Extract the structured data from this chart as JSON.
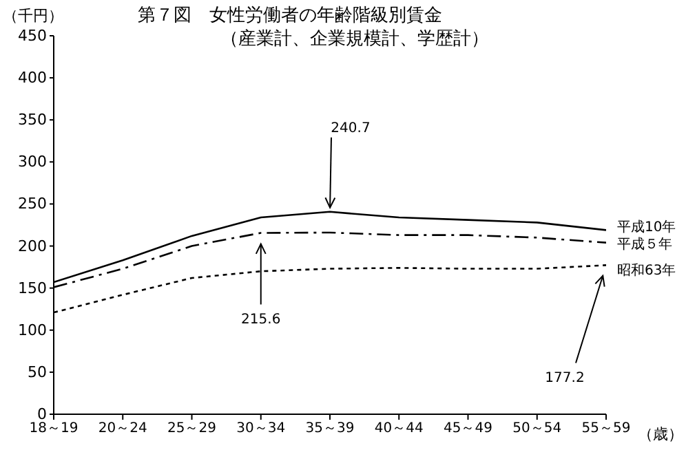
{
  "chart_data": {
    "type": "line",
    "title": "第７図　女性労働者の年齢階級別賃金",
    "subtitle": "（産業計、企業規模計、学歴計）",
    "xlabel": "（歳）",
    "ylabel": "（千円）",
    "categories": [
      "18～19",
      "20～24",
      "25～29",
      "30～34",
      "35～39",
      "40～44",
      "45～49",
      "50～54",
      "55～59"
    ],
    "series": [
      {
        "name": "平成10年",
        "color": "#000000",
        "line_style": "solid",
        "values": [
          157,
          183,
          212,
          234,
          240.7,
          234,
          231,
          228,
          219
        ]
      },
      {
        "name": "平成５年",
        "color": "#000000",
        "line_style": "dashed",
        "values": [
          151,
          173,
          200,
          215.6,
          216,
          213,
          213,
          210,
          204
        ]
      },
      {
        "name": "昭和63年",
        "color": "#000000",
        "line_style": "dotted",
        "values": [
          121,
          142,
          162,
          170,
          173,
          174,
          173,
          173,
          177.2
        ]
      }
    ],
    "ylim": [
      0,
      450
    ],
    "yticks": [
      0,
      50,
      100,
      150,
      200,
      250,
      300,
      350,
      400,
      450
    ],
    "annotations": [
      {
        "text": "240.7",
        "x": "35～39",
        "y": 240.7
      },
      {
        "text": "215.6",
        "x": "30～34",
        "y": 215.6
      },
      {
        "text": "177.2",
        "x": "55～59",
        "y": 177.2
      }
    ],
    "grid": false,
    "legend": "right",
    "marker": "none"
  }
}
